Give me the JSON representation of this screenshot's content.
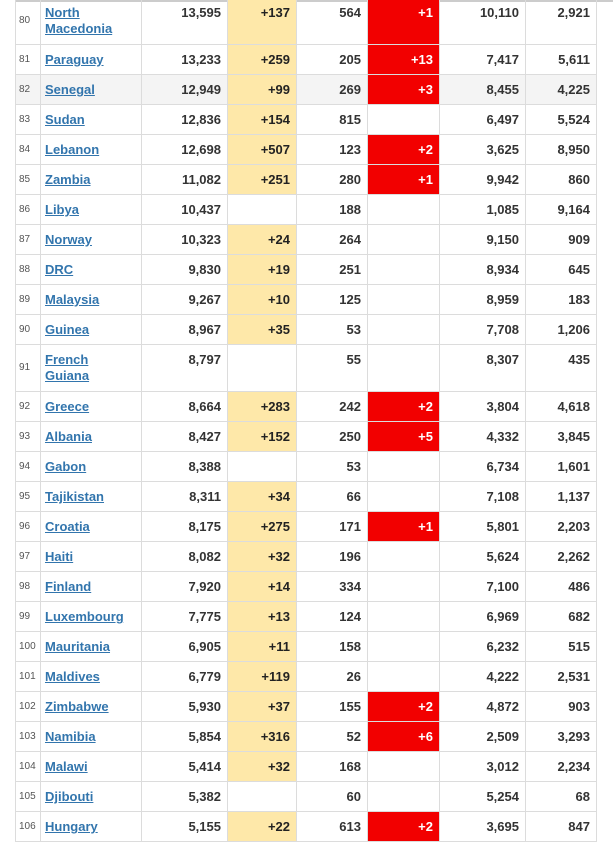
{
  "rows": [
    {
      "rank": "80",
      "country": "North Macedonia",
      "total": "13,595",
      "new_cases": "+137",
      "deaths": "564",
      "new_deaths": "+1",
      "recovered": "10,110",
      "active": "2,921"
    },
    {
      "rank": "81",
      "country": "Paraguay",
      "total": "13,233",
      "new_cases": "+259",
      "deaths": "205",
      "new_deaths": "+13",
      "recovered": "7,417",
      "active": "5,611"
    },
    {
      "rank": "82",
      "country": "Senegal",
      "total": "12,949",
      "new_cases": "+99",
      "deaths": "269",
      "new_deaths": "+3",
      "recovered": "8,455",
      "active": "4,225"
    },
    {
      "rank": "83",
      "country": "Sudan",
      "total": "12,836",
      "new_cases": "+154",
      "deaths": "815",
      "new_deaths": "",
      "recovered": "6,497",
      "active": "5,524"
    },
    {
      "rank": "84",
      "country": "Lebanon",
      "total": "12,698",
      "new_cases": "+507",
      "deaths": "123",
      "new_deaths": "+2",
      "recovered": "3,625",
      "active": "8,950"
    },
    {
      "rank": "85",
      "country": "Zambia",
      "total": "11,082",
      "new_cases": "+251",
      "deaths": "280",
      "new_deaths": "+1",
      "recovered": "9,942",
      "active": "860"
    },
    {
      "rank": "86",
      "country": "Libya",
      "total": "10,437",
      "new_cases": "",
      "deaths": "188",
      "new_deaths": "",
      "recovered": "1,085",
      "active": "9,164"
    },
    {
      "rank": "87",
      "country": "Norway",
      "total": "10,323",
      "new_cases": "+24",
      "deaths": "264",
      "new_deaths": "",
      "recovered": "9,150",
      "active": "909"
    },
    {
      "rank": "88",
      "country": "DRC",
      "total": "9,830",
      "new_cases": "+19",
      "deaths": "251",
      "new_deaths": "",
      "recovered": "8,934",
      "active": "645"
    },
    {
      "rank": "89",
      "country": "Malaysia",
      "total": "9,267",
      "new_cases": "+10",
      "deaths": "125",
      "new_deaths": "",
      "recovered": "8,959",
      "active": "183"
    },
    {
      "rank": "90",
      "country": "Guinea",
      "total": "8,967",
      "new_cases": "+35",
      "deaths": "53",
      "new_deaths": "",
      "recovered": "7,708",
      "active": "1,206"
    },
    {
      "rank": "91",
      "country": "French Guiana",
      "total": "8,797",
      "new_cases": "",
      "deaths": "55",
      "new_deaths": "",
      "recovered": "8,307",
      "active": "435"
    },
    {
      "rank": "92",
      "country": "Greece",
      "total": "8,664",
      "new_cases": "+283",
      "deaths": "242",
      "new_deaths": "+2",
      "recovered": "3,804",
      "active": "4,618"
    },
    {
      "rank": "93",
      "country": "Albania",
      "total": "8,427",
      "new_cases": "+152",
      "deaths": "250",
      "new_deaths": "+5",
      "recovered": "4,332",
      "active": "3,845"
    },
    {
      "rank": "94",
      "country": "Gabon",
      "total": "8,388",
      "new_cases": "",
      "deaths": "53",
      "new_deaths": "",
      "recovered": "6,734",
      "active": "1,601"
    },
    {
      "rank": "95",
      "country": "Tajikistan",
      "total": "8,311",
      "new_cases": "+34",
      "deaths": "66",
      "new_deaths": "",
      "recovered": "7,108",
      "active": "1,137"
    },
    {
      "rank": "96",
      "country": "Croatia",
      "total": "8,175",
      "new_cases": "+275",
      "deaths": "171",
      "new_deaths": "+1",
      "recovered": "5,801",
      "active": "2,203"
    },
    {
      "rank": "97",
      "country": "Haiti",
      "total": "8,082",
      "new_cases": "+32",
      "deaths": "196",
      "new_deaths": "",
      "recovered": "5,624",
      "active": "2,262"
    },
    {
      "rank": "98",
      "country": "Finland",
      "total": "7,920",
      "new_cases": "+14",
      "deaths": "334",
      "new_deaths": "",
      "recovered": "7,100",
      "active": "486"
    },
    {
      "rank": "99",
      "country": "Luxembourg",
      "total": "7,775",
      "new_cases": "+13",
      "deaths": "124",
      "new_deaths": "",
      "recovered": "6,969",
      "active": "682"
    },
    {
      "rank": "100",
      "country": "Mauritania",
      "total": "6,905",
      "new_cases": "+11",
      "deaths": "158",
      "new_deaths": "",
      "recovered": "6,232",
      "active": "515"
    },
    {
      "rank": "101",
      "country": "Maldives",
      "total": "6,779",
      "new_cases": "+119",
      "deaths": "26",
      "new_deaths": "",
      "recovered": "4,222",
      "active": "2,531"
    },
    {
      "rank": "102",
      "country": "Zimbabwe",
      "total": "5,930",
      "new_cases": "+37",
      "deaths": "155",
      "new_deaths": "+2",
      "recovered": "4,872",
      "active": "903"
    },
    {
      "rank": "103",
      "country": "Namibia",
      "total": "5,854",
      "new_cases": "+316",
      "deaths": "52",
      "new_deaths": "+6",
      "recovered": "2,509",
      "active": "3,293"
    },
    {
      "rank": "104",
      "country": "Malawi",
      "total": "5,414",
      "new_cases": "+32",
      "deaths": "168",
      "new_deaths": "",
      "recovered": "3,012",
      "active": "2,234"
    },
    {
      "rank": "105",
      "country": "Djibouti",
      "total": "5,382",
      "new_cases": "",
      "deaths": "60",
      "new_deaths": "",
      "recovered": "5,254",
      "active": "68"
    },
    {
      "rank": "106",
      "country": "Hungary",
      "total": "5,155",
      "new_cases": "+22",
      "deaths": "613",
      "new_deaths": "+2",
      "recovered": "3,695",
      "active": "847"
    }
  ],
  "highlighted_country": "Senegal",
  "colors": {
    "new_cases_bg": "#fee8a9",
    "new_deaths_bg": "#f20000",
    "link": "#3275ad",
    "row_highlight": "#f4f4f4"
  }
}
